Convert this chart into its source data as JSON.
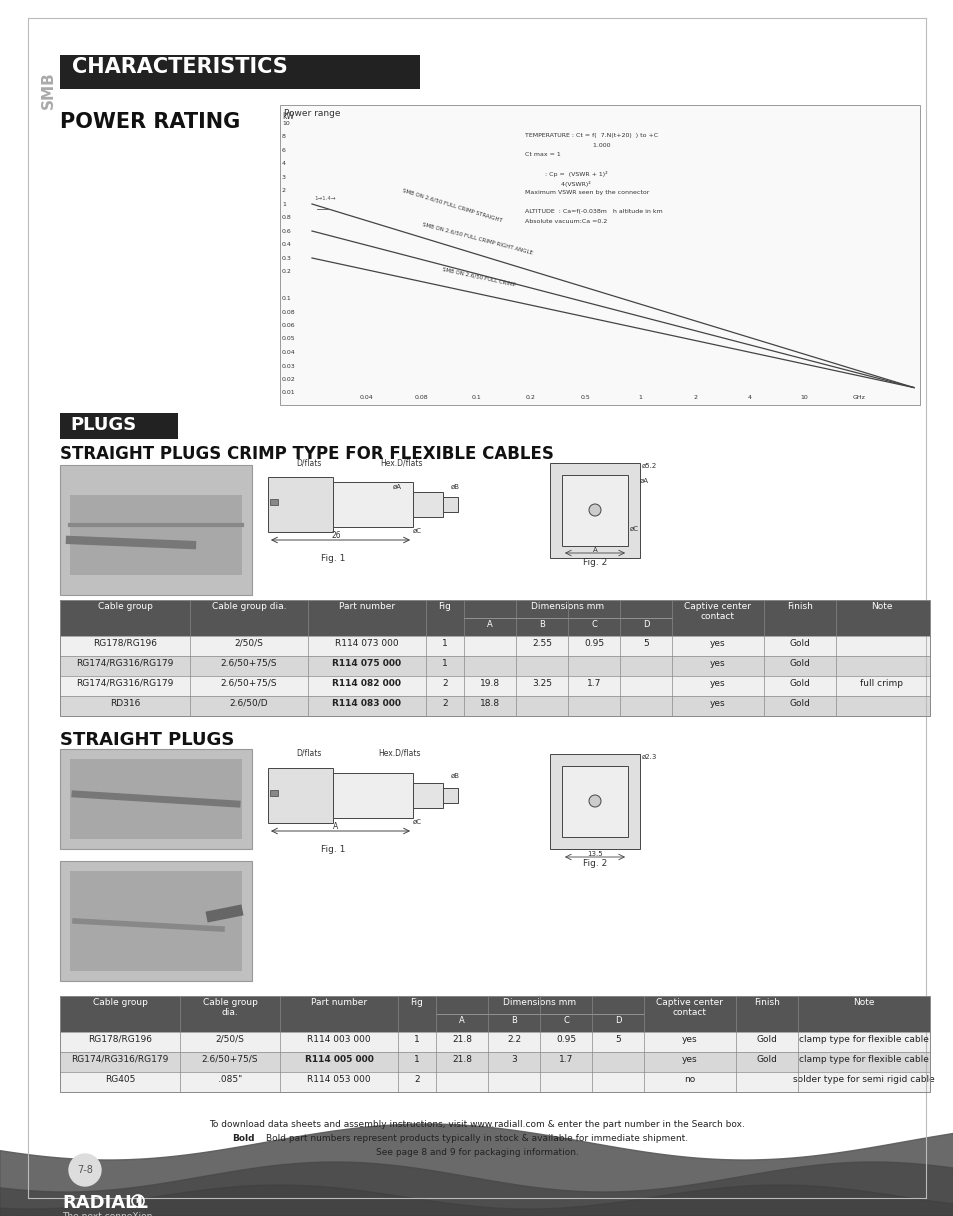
{
  "page_bg": "#ffffff",
  "header_bg": "#222222",
  "header_text": "CHARACTERISTICS",
  "header_text_color": "#ffffff",
  "smb_text": "SMB",
  "section1_title": "POWER RATING",
  "plugs_header_bg": "#222222",
  "plugs_header_text": "PLUGS",
  "plugs_header_text_color": "#ffffff",
  "crimp_title": "STRAIGHT PLUGS CRIMP TYPE FOR FLEXIBLE CABLES",
  "straight_title": "STRAIGHT PLUGS",
  "footer_line1": "To download data sheets and assembly instructions, visit www.radiall.com & enter the part number in the Search box.",
  "footer_line2_pre": "Bold part numbers represent products typically in stock & available for immediate shipment.",
  "footer_line3": "See page 8 and 9 for packaging information.",
  "page_number": "7-8",
  "table_header_bg": "#555555",
  "table_header_text_color": "#ffffff",
  "table_row_bg_odd": "#f0f0f0",
  "table_row_bg_even": "#d8d8d8",
  "table_border_color": "#888888",
  "chart_annotation": [
    "TEMPERATURE : Ct = f(",
    "Ct max = 1",
    ": Cp =",
    "",
    "Maximum VSWR seen by the connector",
    "",
    "ALTITUDE  : Ca=f(-0.038m",
    "Absolute vacuum:Ca =0.2"
  ],
  "t1_rows": [
    [
      "RG178/RG196",
      "2/50/S",
      "R114 073 000",
      false,
      "1",
      "",
      "2.55",
      "0.95",
      "5",
      "yes",
      "Gold",
      ""
    ],
    [
      "RG174/RG316/RG179",
      "2.6/50+75/S",
      "R114 075 000",
      true,
      "1",
      "",
      "",
      "",
      "",
      "yes",
      "Gold",
      ""
    ],
    [
      "RG174/RG316/RG179",
      "2.6/50+75/S",
      "R114 082 000",
      true,
      "2",
      "19.8",
      "3.25",
      "1.7",
      "",
      "yes",
      "Gold",
      "full crimp"
    ],
    [
      "RD316",
      "2.6/50/D",
      "R114 083 000",
      true,
      "2",
      "18.8",
      "",
      "",
      "",
      "yes",
      "Gold",
      ""
    ]
  ],
  "t2_rows": [
    [
      "RG178/RG196",
      "2/50/S",
      "R114 003 000",
      false,
      "1",
      "21.8",
      "2.2",
      "0.95",
      "5",
      "yes",
      "Gold",
      "clamp type for flexible cable"
    ],
    [
      "RG174/RG316/RG179",
      "2.6/50+75/S",
      "R114 005 000",
      true,
      "1",
      "21.8",
      "3",
      "1.7",
      "",
      "yes",
      "Gold",
      "clamp type for flexible cable"
    ],
    [
      "RG405",
      ".085\"",
      "R114 053 000",
      false,
      "2",
      "",
      "",
      "",
      "",
      "no",
      "",
      "solder type for semi rigid cable"
    ]
  ]
}
